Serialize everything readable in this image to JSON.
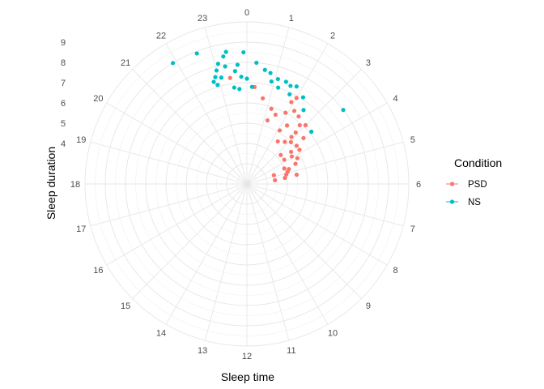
{
  "chart_data": {
    "type": "scatter",
    "coord": "polar",
    "theta_label": "Sleep time",
    "r_label": "Sleep duration",
    "theta_ticks": [
      "0",
      "1",
      "2",
      "3",
      "4",
      "5",
      "6",
      "7",
      "8",
      "9",
      "10",
      "11",
      "12",
      "13",
      "14",
      "15",
      "16",
      "17",
      "18",
      "19",
      "20",
      "21",
      "22",
      "23"
    ],
    "theta_range": [
      0,
      24
    ],
    "r_ticks": [
      "4",
      "5",
      "6",
      "7",
      "8",
      "9"
    ],
    "r_tick_values": [
      4,
      5,
      6,
      7,
      8,
      9
    ],
    "r_range": [
      2,
      10
    ],
    "grid": true,
    "legend": {
      "title": "Condition",
      "position": "right",
      "entries": [
        {
          "label": "PSD",
          "color": "#F8766D"
        },
        {
          "label": "NS",
          "color": "#00BFC4"
        }
      ]
    },
    "series": [
      {
        "name": "PSD",
        "color": "#F8766D",
        "points": [
          {
            "x": 0.3,
            "y": 6.8
          },
          {
            "x": 0.7,
            "y": 6.3
          },
          {
            "x": 1.2,
            "y": 5.9
          },
          {
            "x": 1.9,
            "y": 6.6
          },
          {
            "x": 2.0,
            "y": 6.9
          },
          {
            "x": 1.2,
            "y": 5.3
          },
          {
            "x": 1.5,
            "y": 5.7
          },
          {
            "x": 1.9,
            "y": 6.0
          },
          {
            "x": 2.2,
            "y": 6.3
          },
          {
            "x": 2.5,
            "y": 6.2
          },
          {
            "x": 2.3,
            "y": 5.5
          },
          {
            "x": 2.8,
            "y": 5.9
          },
          {
            "x": 3.0,
            "y": 6.1
          },
          {
            "x": 2.9,
            "y": 5.5
          },
          {
            "x": 2.1,
            "y": 5.1
          },
          {
            "x": 2.9,
            "y": 5.2
          },
          {
            "x": 3.4,
            "y": 5.6
          },
          {
            "x": 3.1,
            "y": 5.0
          },
          {
            "x": 2.4,
            "y": 4.6
          },
          {
            "x": 2.8,
            "y": 4.8
          },
          {
            "x": 3.5,
            "y": 5.1
          },
          {
            "x": 3.6,
            "y": 4.7
          },
          {
            "x": 3.8,
            "y": 5.1
          },
          {
            "x": 3.9,
            "y": 4.6
          },
          {
            "x": 4.2,
            "y": 4.8
          },
          {
            "x": 4.5,
            "y": 4.6
          },
          {
            "x": 4.7,
            "y": 4.2
          },
          {
            "x": 4.9,
            "y": 4.1
          },
          {
            "x": 5.3,
            "y": 4.5
          },
          {
            "x": 3.3,
            "y": 4.2
          },
          {
            "x": 3.8,
            "y": 4.2
          },
          {
            "x": 4.5,
            "y": 4.0
          },
          {
            "x": 5.1,
            "y": 4.0
          },
          {
            "x": 5.4,
            "y": 3.9
          },
          {
            "x": 4.8,
            "y": 3.4
          },
          {
            "x": 5.5,
            "y": 3.4
          },
          {
            "x": 23.4,
            "y": 7.3
          }
        ]
      },
      {
        "name": "NS",
        "color": "#00BFC4",
        "points": [
          {
            "x": 22.6,
            "y": 8.9
          },
          {
            "x": 21.9,
            "y": 9.0
          },
          {
            "x": 23.4,
            "y": 8.6
          },
          {
            "x": 23.9,
            "y": 8.5
          },
          {
            "x": 23.3,
            "y": 8.4
          },
          {
            "x": 23.1,
            "y": 8.1
          },
          {
            "x": 23.0,
            "y": 7.8
          },
          {
            "x": 23.3,
            "y": 7.9
          },
          {
            "x": 23.7,
            "y": 7.9
          },
          {
            "x": 0.3,
            "y": 8.0
          },
          {
            "x": 0.6,
            "y": 7.7
          },
          {
            "x": 22.9,
            "y": 7.5
          },
          {
            "x": 23.1,
            "y": 7.4
          },
          {
            "x": 22.8,
            "y": 7.3
          },
          {
            "x": 22.9,
            "y": 7.1
          },
          {
            "x": 23.6,
            "y": 7.6
          },
          {
            "x": 23.8,
            "y": 7.3
          },
          {
            "x": 0.0,
            "y": 7.2
          },
          {
            "x": 23.5,
            "y": 6.8
          },
          {
            "x": 23.7,
            "y": 6.7
          },
          {
            "x": 0.2,
            "y": 6.8
          },
          {
            "x": 0.8,
            "y": 7.6
          },
          {
            "x": 0.9,
            "y": 7.2
          },
          {
            "x": 1.1,
            "y": 7.4
          },
          {
            "x": 1.2,
            "y": 7.0
          },
          {
            "x": 1.4,
            "y": 7.4
          },
          {
            "x": 1.6,
            "y": 7.3
          },
          {
            "x": 1.7,
            "y": 6.9
          },
          {
            "x": 1.8,
            "y": 7.4
          },
          {
            "x": 2.2,
            "y": 7.1
          },
          {
            "x": 2.5,
            "y": 6.6
          },
          {
            "x": 3.4,
            "y": 6.1
          },
          {
            "x": 3.5,
            "y": 8.0
          }
        ]
      }
    ]
  }
}
